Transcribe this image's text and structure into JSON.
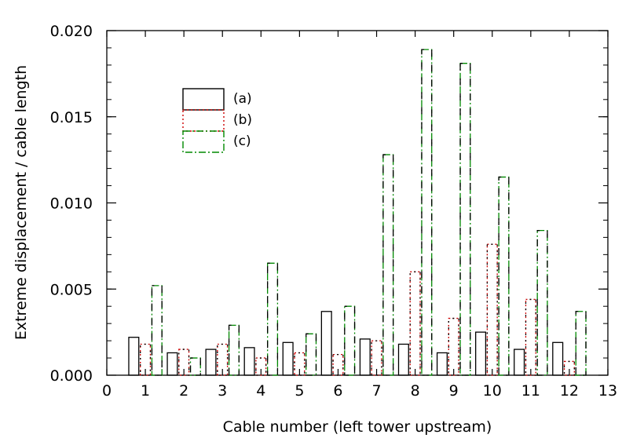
{
  "chart_data": {
    "type": "bar",
    "title": "",
    "xlabel": "Cable number (left tower upstream)",
    "ylabel": "Extreme displacement / cable length",
    "xlim": [
      0,
      13
    ],
    "ylim": [
      0,
      0.02
    ],
    "xticks": [
      "0",
      "1",
      "2",
      "3",
      "4",
      "5",
      "6",
      "7",
      "8",
      "9",
      "10",
      "11",
      "12",
      "13"
    ],
    "yticks": [
      "0.000",
      "0.005",
      "0.010",
      "0.015",
      "0.020"
    ],
    "categories": [
      1,
      2,
      3,
      4,
      5,
      6,
      7,
      8,
      9,
      10,
      11,
      12
    ],
    "series": [
      {
        "name": "(a)",
        "color": "#000000",
        "style": "solid",
        "values": [
          0.0022,
          0.0013,
          0.0015,
          0.0016,
          0.0019,
          0.0037,
          0.0021,
          0.0018,
          0.0013,
          0.0025,
          0.0015,
          0.0019
        ]
      },
      {
        "name": "(b)",
        "color": "#cc0000",
        "style": "dotted",
        "values": [
          0.0018,
          0.0015,
          0.0018,
          0.001,
          0.0013,
          0.0012,
          0.002,
          0.006,
          0.0033,
          0.0076,
          0.0044,
          0.0008
        ]
      },
      {
        "name": "(c)",
        "color": "#008800",
        "style": "dashdot",
        "values": [
          0.0052,
          0.001,
          0.0029,
          0.0065,
          0.0024,
          0.004,
          0.0128,
          0.0189,
          0.0181,
          0.0115,
          0.0084,
          0.0037
        ]
      }
    ],
    "legend_position": "top-left",
    "grid": false
  }
}
